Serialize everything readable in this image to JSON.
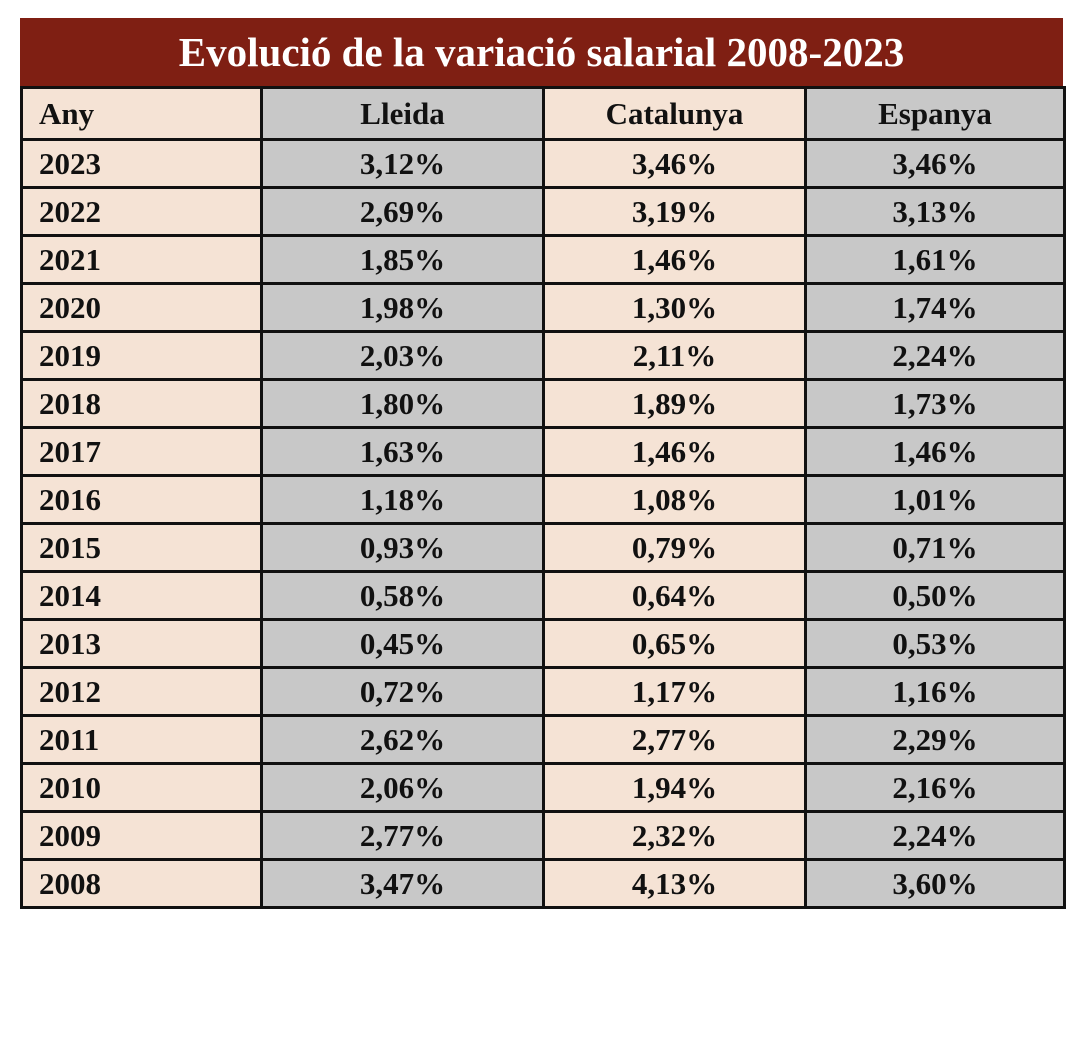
{
  "title": "Evolució de la variació salarial 2008-2023",
  "headers": [
    "Any",
    "Lleida",
    "Catalunya",
    "Espanya"
  ],
  "rows": [
    {
      "year": "2023",
      "lleida": "3,12%",
      "catalunya": "3,46%",
      "espanya": "3,46%"
    },
    {
      "year": "2022",
      "lleida": "2,69%",
      "catalunya": "3,19%",
      "espanya": "3,13%"
    },
    {
      "year": "2021",
      "lleida": "1,85%",
      "catalunya": "1,46%",
      "espanya": "1,61%"
    },
    {
      "year": "2020",
      "lleida": "1,98%",
      "catalunya": "1,30%",
      "espanya": "1,74%"
    },
    {
      "year": "2019",
      "lleida": "2,03%",
      "catalunya": "2,11%",
      "espanya": "2,24%"
    },
    {
      "year": "2018",
      "lleida": "1,80%",
      "catalunya": "1,89%",
      "espanya": "1,73%"
    },
    {
      "year": "2017",
      "lleida": "1,63%",
      "catalunya": "1,46%",
      "espanya": "1,46%"
    },
    {
      "year": "2016",
      "lleida": "1,18%",
      "catalunya": "1,08%",
      "espanya": "1,01%"
    },
    {
      "year": "2015",
      "lleida": "0,93%",
      "catalunya": "0,79%",
      "espanya": "0,71%"
    },
    {
      "year": "2014",
      "lleida": "0,58%",
      "catalunya": "0,64%",
      "espanya": "0,50%"
    },
    {
      "year": "2013",
      "lleida": "0,45%",
      "catalunya": "0,65%",
      "espanya": "0,53%"
    },
    {
      "year": "2012",
      "lleida": "0,72%",
      "catalunya": "1,17%",
      "espanya": "1,16%"
    },
    {
      "year": "2011",
      "lleida": "2,62%",
      "catalunya": "2,77%",
      "espanya": "2,29%"
    },
    {
      "year": "2010",
      "lleida": "2,06%",
      "catalunya": "1,94%",
      "espanya": "2,16%"
    },
    {
      "year": "2009",
      "lleida": "2,77%",
      "catalunya": "2,32%",
      "espanya": "2,24%"
    },
    {
      "year": "2008",
      "lleida": "3,47%",
      "catalunya": "4,13%",
      "espanya": "3,60%"
    }
  ],
  "colors": {
    "title_bg": "#7f1f13",
    "title_text": "#ffffff",
    "peach": "#f5e3d5",
    "grey": "#c8c8c8",
    "border": "#111111"
  }
}
